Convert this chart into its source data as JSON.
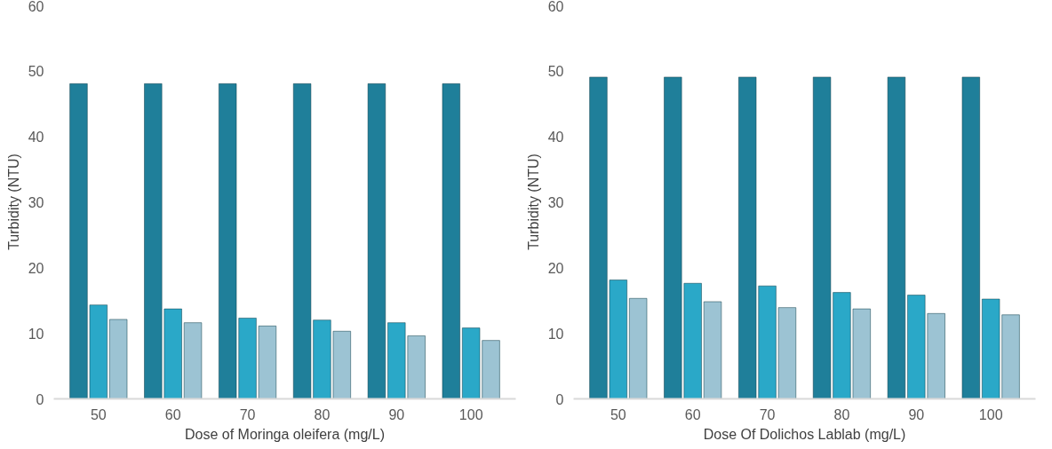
{
  "chart_data": [
    {
      "type": "bar",
      "xlabel": "Dose of Moringa oleifera (mg/L)",
      "ylabel": "Turbidity (NTU)",
      "categories": [
        "50",
        "60",
        "70",
        "80",
        "90",
        "100"
      ],
      "ylim": [
        0,
        60
      ],
      "yticks": [
        0,
        10,
        20,
        30,
        40,
        50,
        60
      ],
      "grid": false,
      "series": [
        {
          "color": "#1f7f9a",
          "values": [
            48,
            48,
            48,
            48,
            48,
            48
          ]
        },
        {
          "color": "#2aa8c8",
          "values": [
            14.3,
            13.7,
            12.3,
            12.0,
            11.6,
            10.8
          ]
        },
        {
          "color": "#9cc3d3",
          "values": [
            12.1,
            11.6,
            11.1,
            10.3,
            9.6,
            8.9
          ]
        }
      ]
    },
    {
      "type": "bar",
      "xlabel": "Dose Of Dolichos Lablab (mg/L)",
      "ylabel": "Turbidity (NTU)",
      "categories": [
        "50",
        "60",
        "70",
        "80",
        "90",
        "100"
      ],
      "ylim": [
        0,
        60
      ],
      "yticks": [
        0,
        10,
        20,
        30,
        40,
        50,
        60
      ],
      "grid": false,
      "series": [
        {
          "color": "#1f7f9a",
          "values": [
            49,
            49,
            49,
            49,
            49,
            49
          ]
        },
        {
          "color": "#2aa8c8",
          "values": [
            18.1,
            17.6,
            17.2,
            16.2,
            15.8,
            15.2
          ]
        },
        {
          "color": "#9cc3d3",
          "values": [
            15.3,
            14.8,
            13.9,
            13.7,
            13.0,
            12.8
          ]
        }
      ]
    }
  ]
}
